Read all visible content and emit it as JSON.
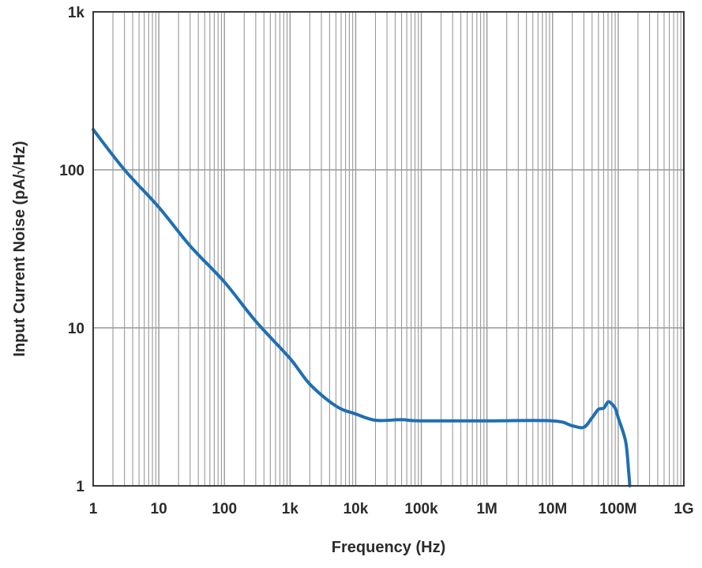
{
  "chart_data": {
    "type": "line",
    "title": "",
    "xlabel": "Frequency (Hz)",
    "ylabel": "Input Current Noise (pA/√Hz)",
    "x_scale": "log",
    "y_scale": "log",
    "xlim": [
      1,
      1000000000
    ],
    "ylim": [
      1,
      1000
    ],
    "grid": true,
    "x_ticks": [
      {
        "value": 1,
        "label": "1"
      },
      {
        "value": 10,
        "label": "10"
      },
      {
        "value": 100,
        "label": "100"
      },
      {
        "value": 1000,
        "label": "1k"
      },
      {
        "value": 10000,
        "label": "10k"
      },
      {
        "value": 100000,
        "label": "100k"
      },
      {
        "value": 1000000,
        "label": "1M"
      },
      {
        "value": 10000000,
        "label": "10M"
      },
      {
        "value": 100000000,
        "label": "100M"
      },
      {
        "value": 1000000000,
        "label": "1G"
      }
    ],
    "y_ticks": [
      {
        "value": 1,
        "label": "1"
      },
      {
        "value": 10,
        "label": "10"
      },
      {
        "value": 100,
        "label": "100"
      },
      {
        "value": 1000,
        "label": "1k"
      }
    ],
    "colors": {
      "line": "#1f6fb2",
      "grid": "#999999",
      "frame": "#3a3a3a",
      "text": "#2b2b2b"
    },
    "series": [
      {
        "x": [
          1,
          3,
          10,
          30,
          100,
          300,
          1000,
          2000,
          5000,
          10000,
          20000,
          50000,
          100000,
          1000000,
          10000000,
          20000000,
          30000000,
          40000000,
          50000000,
          60000000,
          70000000,
          80000000,
          90000000,
          100000000,
          130000000,
          145000000,
          150000000
        ],
        "y": [
          180,
          100,
          58,
          33,
          19.5,
          11,
          6.4,
          4.4,
          3.2,
          2.85,
          2.6,
          2.62,
          2.58,
          2.58,
          2.58,
          2.4,
          2.35,
          2.7,
          3.05,
          3.1,
          3.4,
          3.3,
          3.1,
          2.7,
          1.9,
          1.2,
          1.0
        ]
      }
    ]
  }
}
